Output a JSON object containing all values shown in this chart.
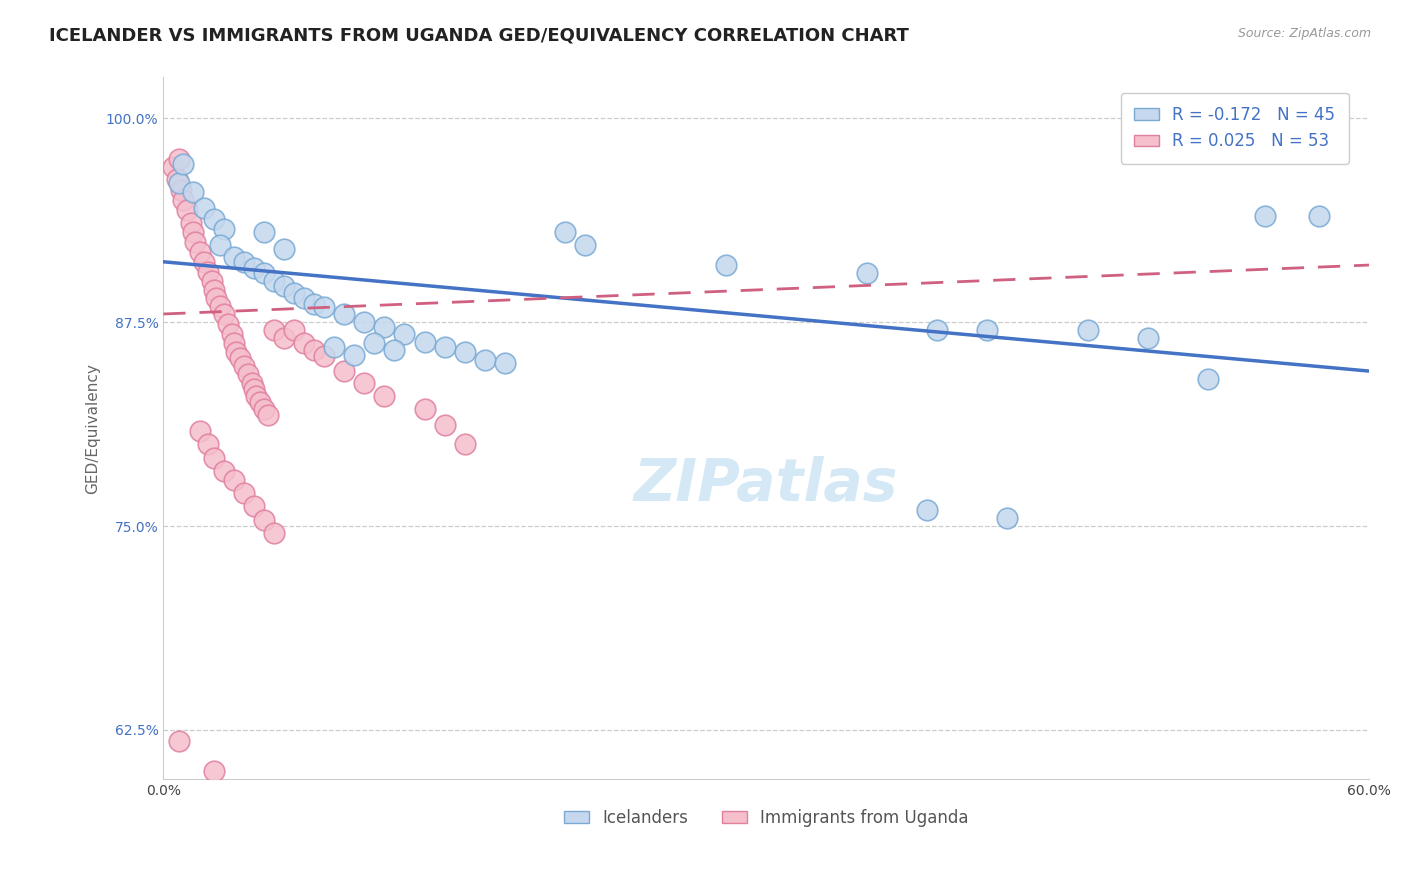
{
  "title": "ICELANDER VS IMMIGRANTS FROM UGANDA GED/EQUIVALENCY CORRELATION CHART",
  "source": "Source: ZipAtlas.com",
  "ylabel": "GED/Equivalency",
  "legend_label_blue": "Icelanders",
  "legend_label_pink": "Immigrants from Uganda",
  "r_blue": -0.172,
  "n_blue": 45,
  "r_pink": 0.025,
  "n_pink": 53,
  "xmin": 0.0,
  "xmax": 0.6,
  "ymin": 0.595,
  "ymax": 1.025,
  "yticks": [
    0.625,
    0.75,
    0.875,
    1.0
  ],
  "ytick_labels": [
    "62.5%",
    "75.0%",
    "87.5%",
    "100.0%"
  ],
  "xticks": [
    0.0,
    0.6
  ],
  "xtick_labels": [
    "0.0%",
    "60.0%"
  ],
  "watermark_text": "ZIPatlas",
  "blue_face": "#c5d8ee",
  "blue_edge": "#7aaad4",
  "pink_face": "#f5bfcc",
  "pink_edge": "#e080a0",
  "blue_line": "#4472c4",
  "pink_line": "#d06080",
  "blue_scatter": [
    [
      0.008,
      0.96
    ],
    [
      0.015,
      0.955
    ],
    [
      0.02,
      0.945
    ],
    [
      0.025,
      0.938
    ],
    [
      0.03,
      0.932
    ],
    [
      0.028,
      0.922
    ],
    [
      0.035,
      0.915
    ],
    [
      0.04,
      0.912
    ],
    [
      0.045,
      0.908
    ],
    [
      0.05,
      0.905
    ],
    [
      0.055,
      0.9
    ],
    [
      0.06,
      0.897
    ],
    [
      0.065,
      0.893
    ],
    [
      0.07,
      0.89
    ],
    [
      0.075,
      0.886
    ],
    [
      0.08,
      0.884
    ],
    [
      0.09,
      0.88
    ],
    [
      0.01,
      0.972
    ],
    [
      0.1,
      0.875
    ],
    [
      0.11,
      0.872
    ],
    [
      0.12,
      0.868
    ],
    [
      0.13,
      0.863
    ],
    [
      0.14,
      0.86
    ],
    [
      0.15,
      0.857
    ],
    [
      0.16,
      0.852
    ],
    [
      0.17,
      0.85
    ],
    [
      0.05,
      0.93
    ],
    [
      0.06,
      0.92
    ],
    [
      0.085,
      0.86
    ],
    [
      0.095,
      0.855
    ],
    [
      0.105,
      0.862
    ],
    [
      0.115,
      0.858
    ],
    [
      0.2,
      0.93
    ],
    [
      0.21,
      0.922
    ],
    [
      0.28,
      0.91
    ],
    [
      0.35,
      0.905
    ],
    [
      0.385,
      0.87
    ],
    [
      0.41,
      0.87
    ],
    [
      0.46,
      0.87
    ],
    [
      0.49,
      0.865
    ],
    [
      0.38,
      0.76
    ],
    [
      0.42,
      0.755
    ],
    [
      0.52,
      0.84
    ],
    [
      0.548,
      0.94
    ],
    [
      0.575,
      0.94
    ]
  ],
  "pink_scatter": [
    [
      0.005,
      0.97
    ],
    [
      0.007,
      0.963
    ],
    [
      0.009,
      0.956
    ],
    [
      0.01,
      0.95
    ],
    [
      0.012,
      0.944
    ],
    [
      0.014,
      0.936
    ],
    [
      0.015,
      0.93
    ],
    [
      0.016,
      0.924
    ],
    [
      0.018,
      0.918
    ],
    [
      0.02,
      0.912
    ],
    [
      0.022,
      0.906
    ],
    [
      0.024,
      0.9
    ],
    [
      0.025,
      0.895
    ],
    [
      0.026,
      0.89
    ],
    [
      0.028,
      0.885
    ],
    [
      0.03,
      0.88
    ],
    [
      0.032,
      0.874
    ],
    [
      0.034,
      0.868
    ],
    [
      0.035,
      0.862
    ],
    [
      0.036,
      0.857
    ],
    [
      0.038,
      0.853
    ],
    [
      0.04,
      0.848
    ],
    [
      0.042,
      0.843
    ],
    [
      0.044,
      0.838
    ],
    [
      0.045,
      0.834
    ],
    [
      0.046,
      0.83
    ],
    [
      0.048,
      0.826
    ],
    [
      0.05,
      0.822
    ],
    [
      0.052,
      0.818
    ],
    [
      0.008,
      0.975
    ],
    [
      0.055,
      0.87
    ],
    [
      0.06,
      0.865
    ],
    [
      0.065,
      0.87
    ],
    [
      0.07,
      0.862
    ],
    [
      0.075,
      0.858
    ],
    [
      0.08,
      0.854
    ],
    [
      0.09,
      0.845
    ],
    [
      0.1,
      0.838
    ],
    [
      0.11,
      0.83
    ],
    [
      0.13,
      0.822
    ],
    [
      0.14,
      0.812
    ],
    [
      0.15,
      0.8
    ],
    [
      0.018,
      0.808
    ],
    [
      0.022,
      0.8
    ],
    [
      0.025,
      0.792
    ],
    [
      0.03,
      0.784
    ],
    [
      0.035,
      0.778
    ],
    [
      0.04,
      0.77
    ],
    [
      0.045,
      0.762
    ],
    [
      0.05,
      0.754
    ],
    [
      0.055,
      0.746
    ],
    [
      0.008,
      0.618
    ],
    [
      0.025,
      0.6
    ]
  ],
  "blue_trend_x": [
    0.0,
    0.6
  ],
  "blue_trend_y": [
    0.912,
    0.845
  ],
  "pink_trend_x": [
    0.0,
    0.6
  ],
  "pink_trend_y": [
    0.88,
    0.91
  ],
  "title_fontsize": 13,
  "axis_label_fontsize": 11,
  "tick_fontsize": 10,
  "legend_fontsize": 12,
  "watermark_fontsize": 42,
  "watermark_color": "#d5e8f5",
  "background_color": "#ffffff",
  "grid_color": "#cccccc"
}
